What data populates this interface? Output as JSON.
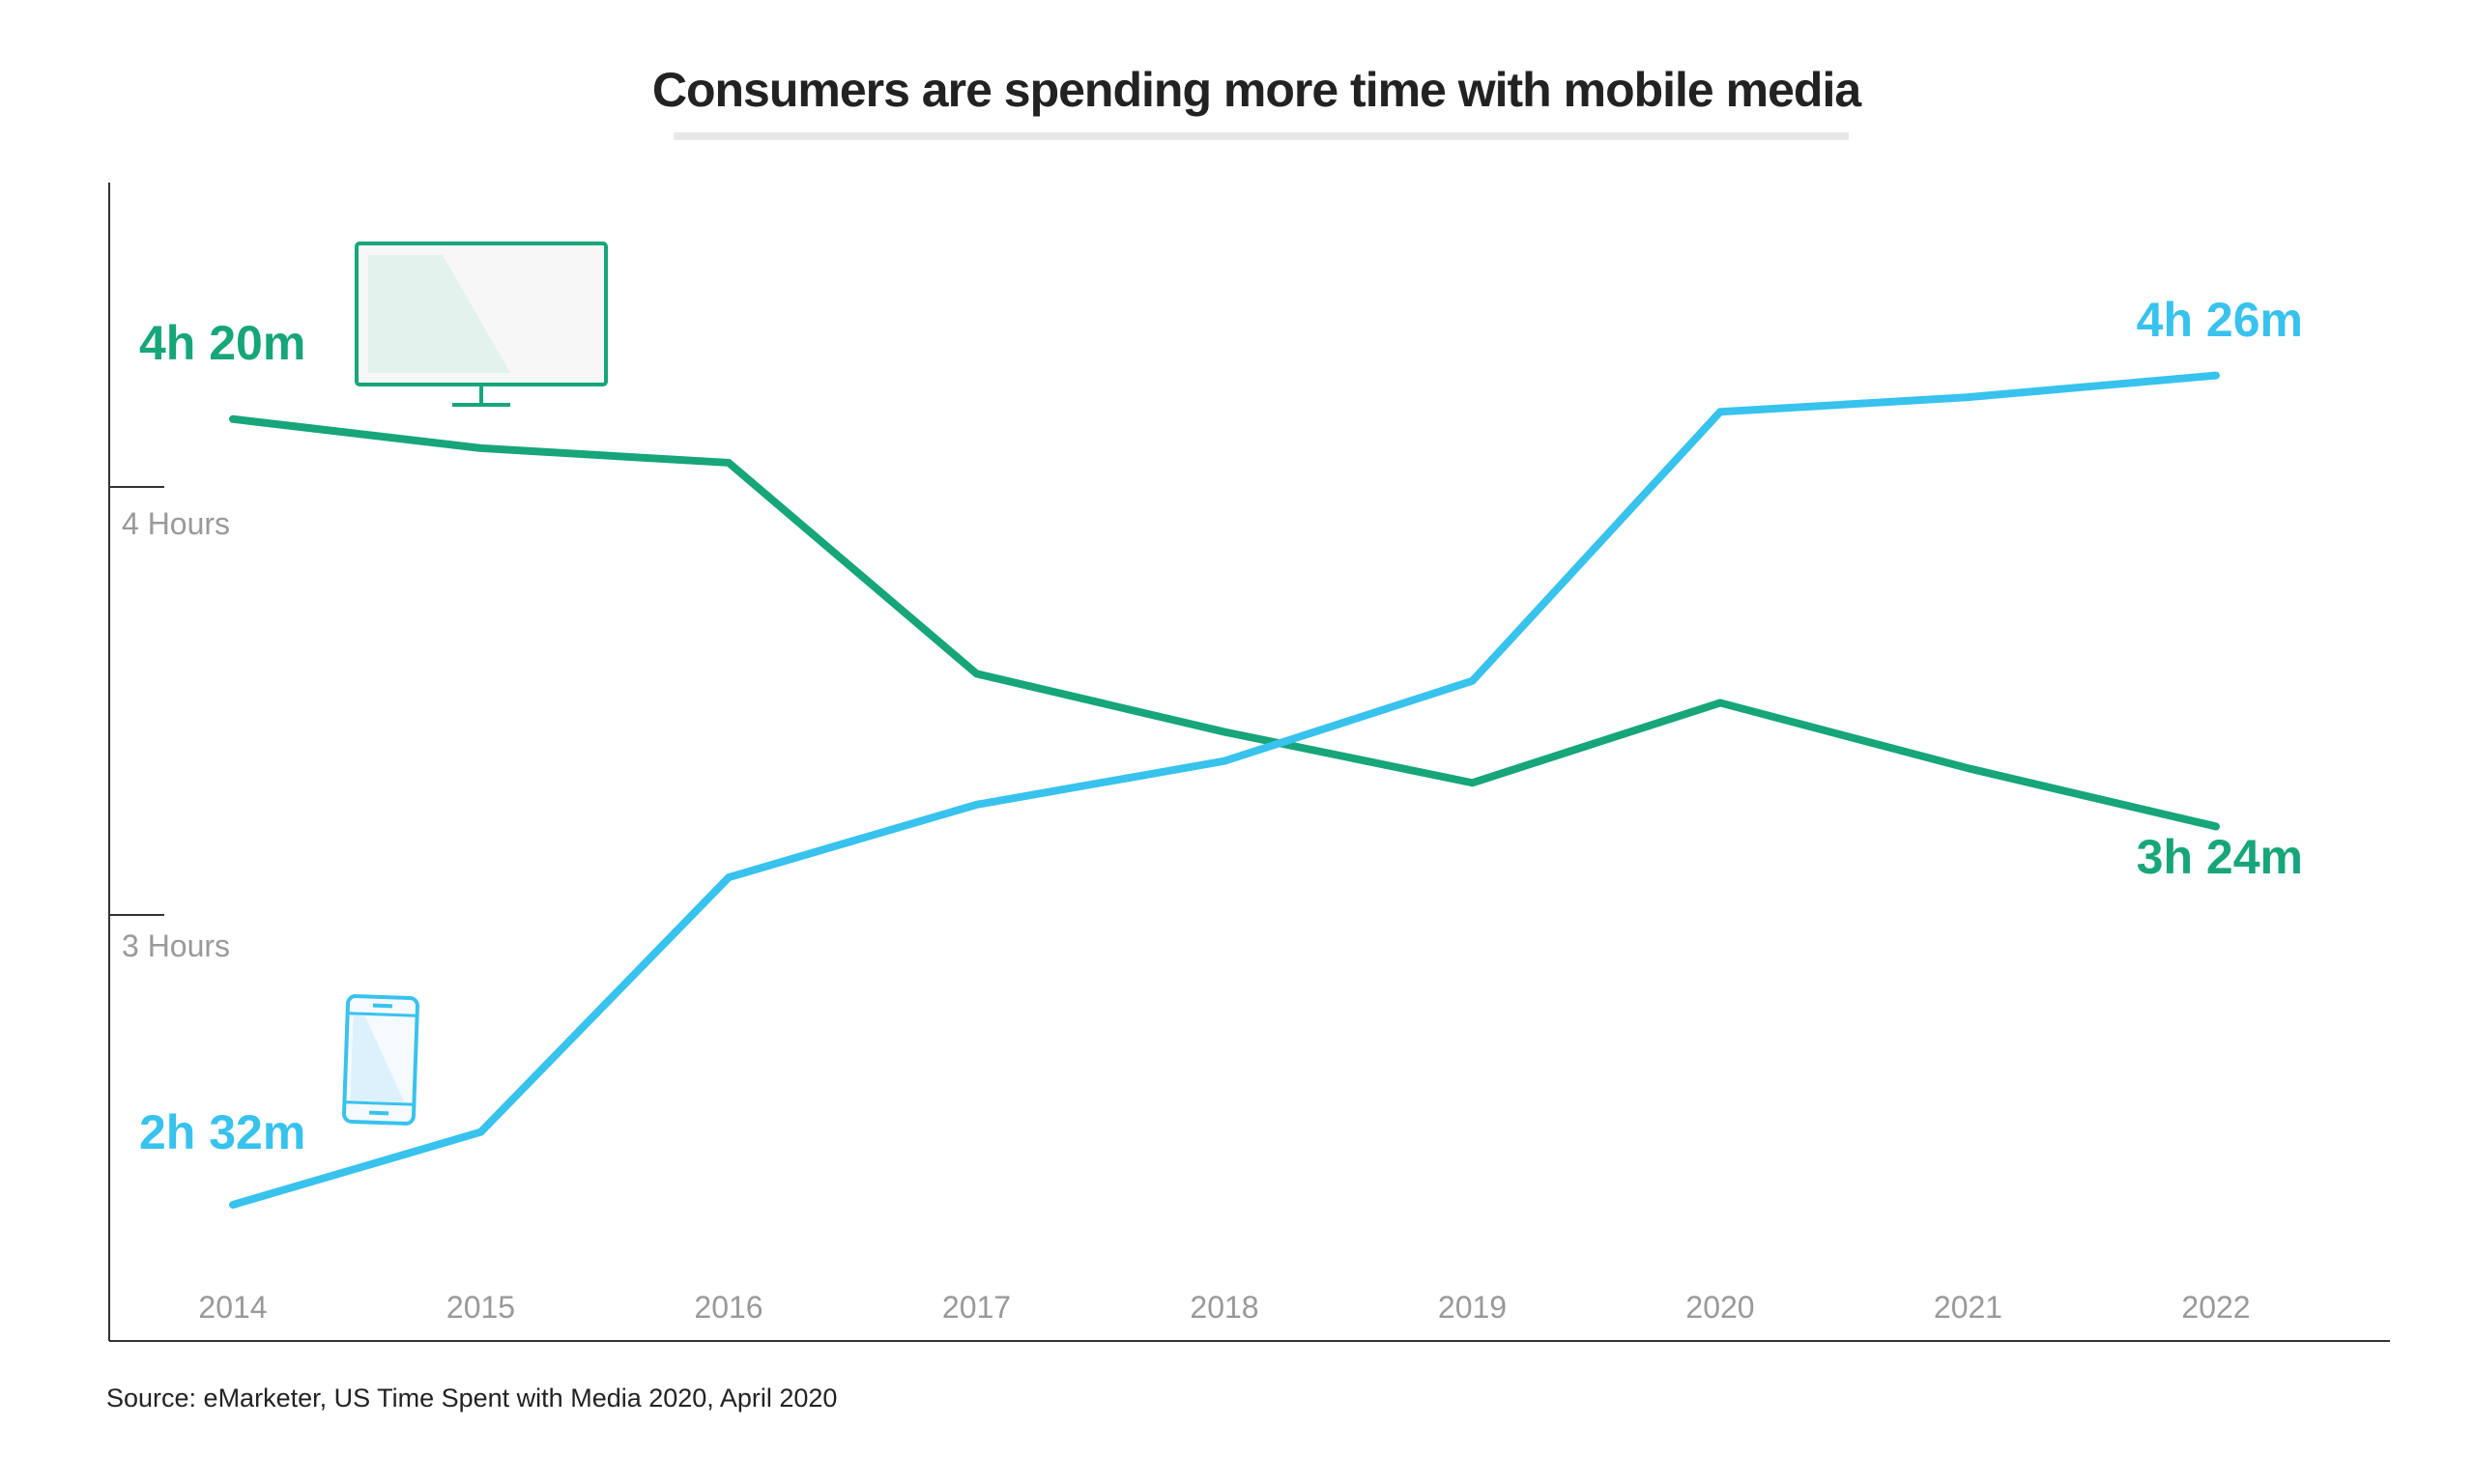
{
  "chart_data": {
    "type": "line",
    "title": "Consumers are spending more time with mobile media",
    "x": [
      "2014",
      "2015",
      "2016",
      "2017",
      "2018",
      "2019",
      "2020",
      "2021",
      "2022"
    ],
    "yunit": "minutes",
    "yticks": [
      {
        "value": 240,
        "label": "4 Hours"
      },
      {
        "value": 180,
        "label": "3 Hours"
      }
    ],
    "grid": false,
    "series": [
      {
        "key": "tv",
        "icon": "tv-icon",
        "color": "#17a57a",
        "values": [
          260,
          256,
          254,
          225,
          217,
          210,
          221,
          212,
          204
        ]
      },
      {
        "key": "mobile",
        "icon": "smartphone-icon",
        "color": "#38c2ee",
        "values": [
          152,
          162,
          197,
          207,
          213,
          224,
          261,
          263,
          266
        ]
      }
    ],
    "annotations": {
      "tv_start": "4h 20m",
      "tv_end": "3h 24m",
      "mobile_start": "2h 32m",
      "mobile_end": "4h 26m"
    },
    "source": "Source: eMarketer, US Time Spent with Media 2020, April 2020"
  }
}
